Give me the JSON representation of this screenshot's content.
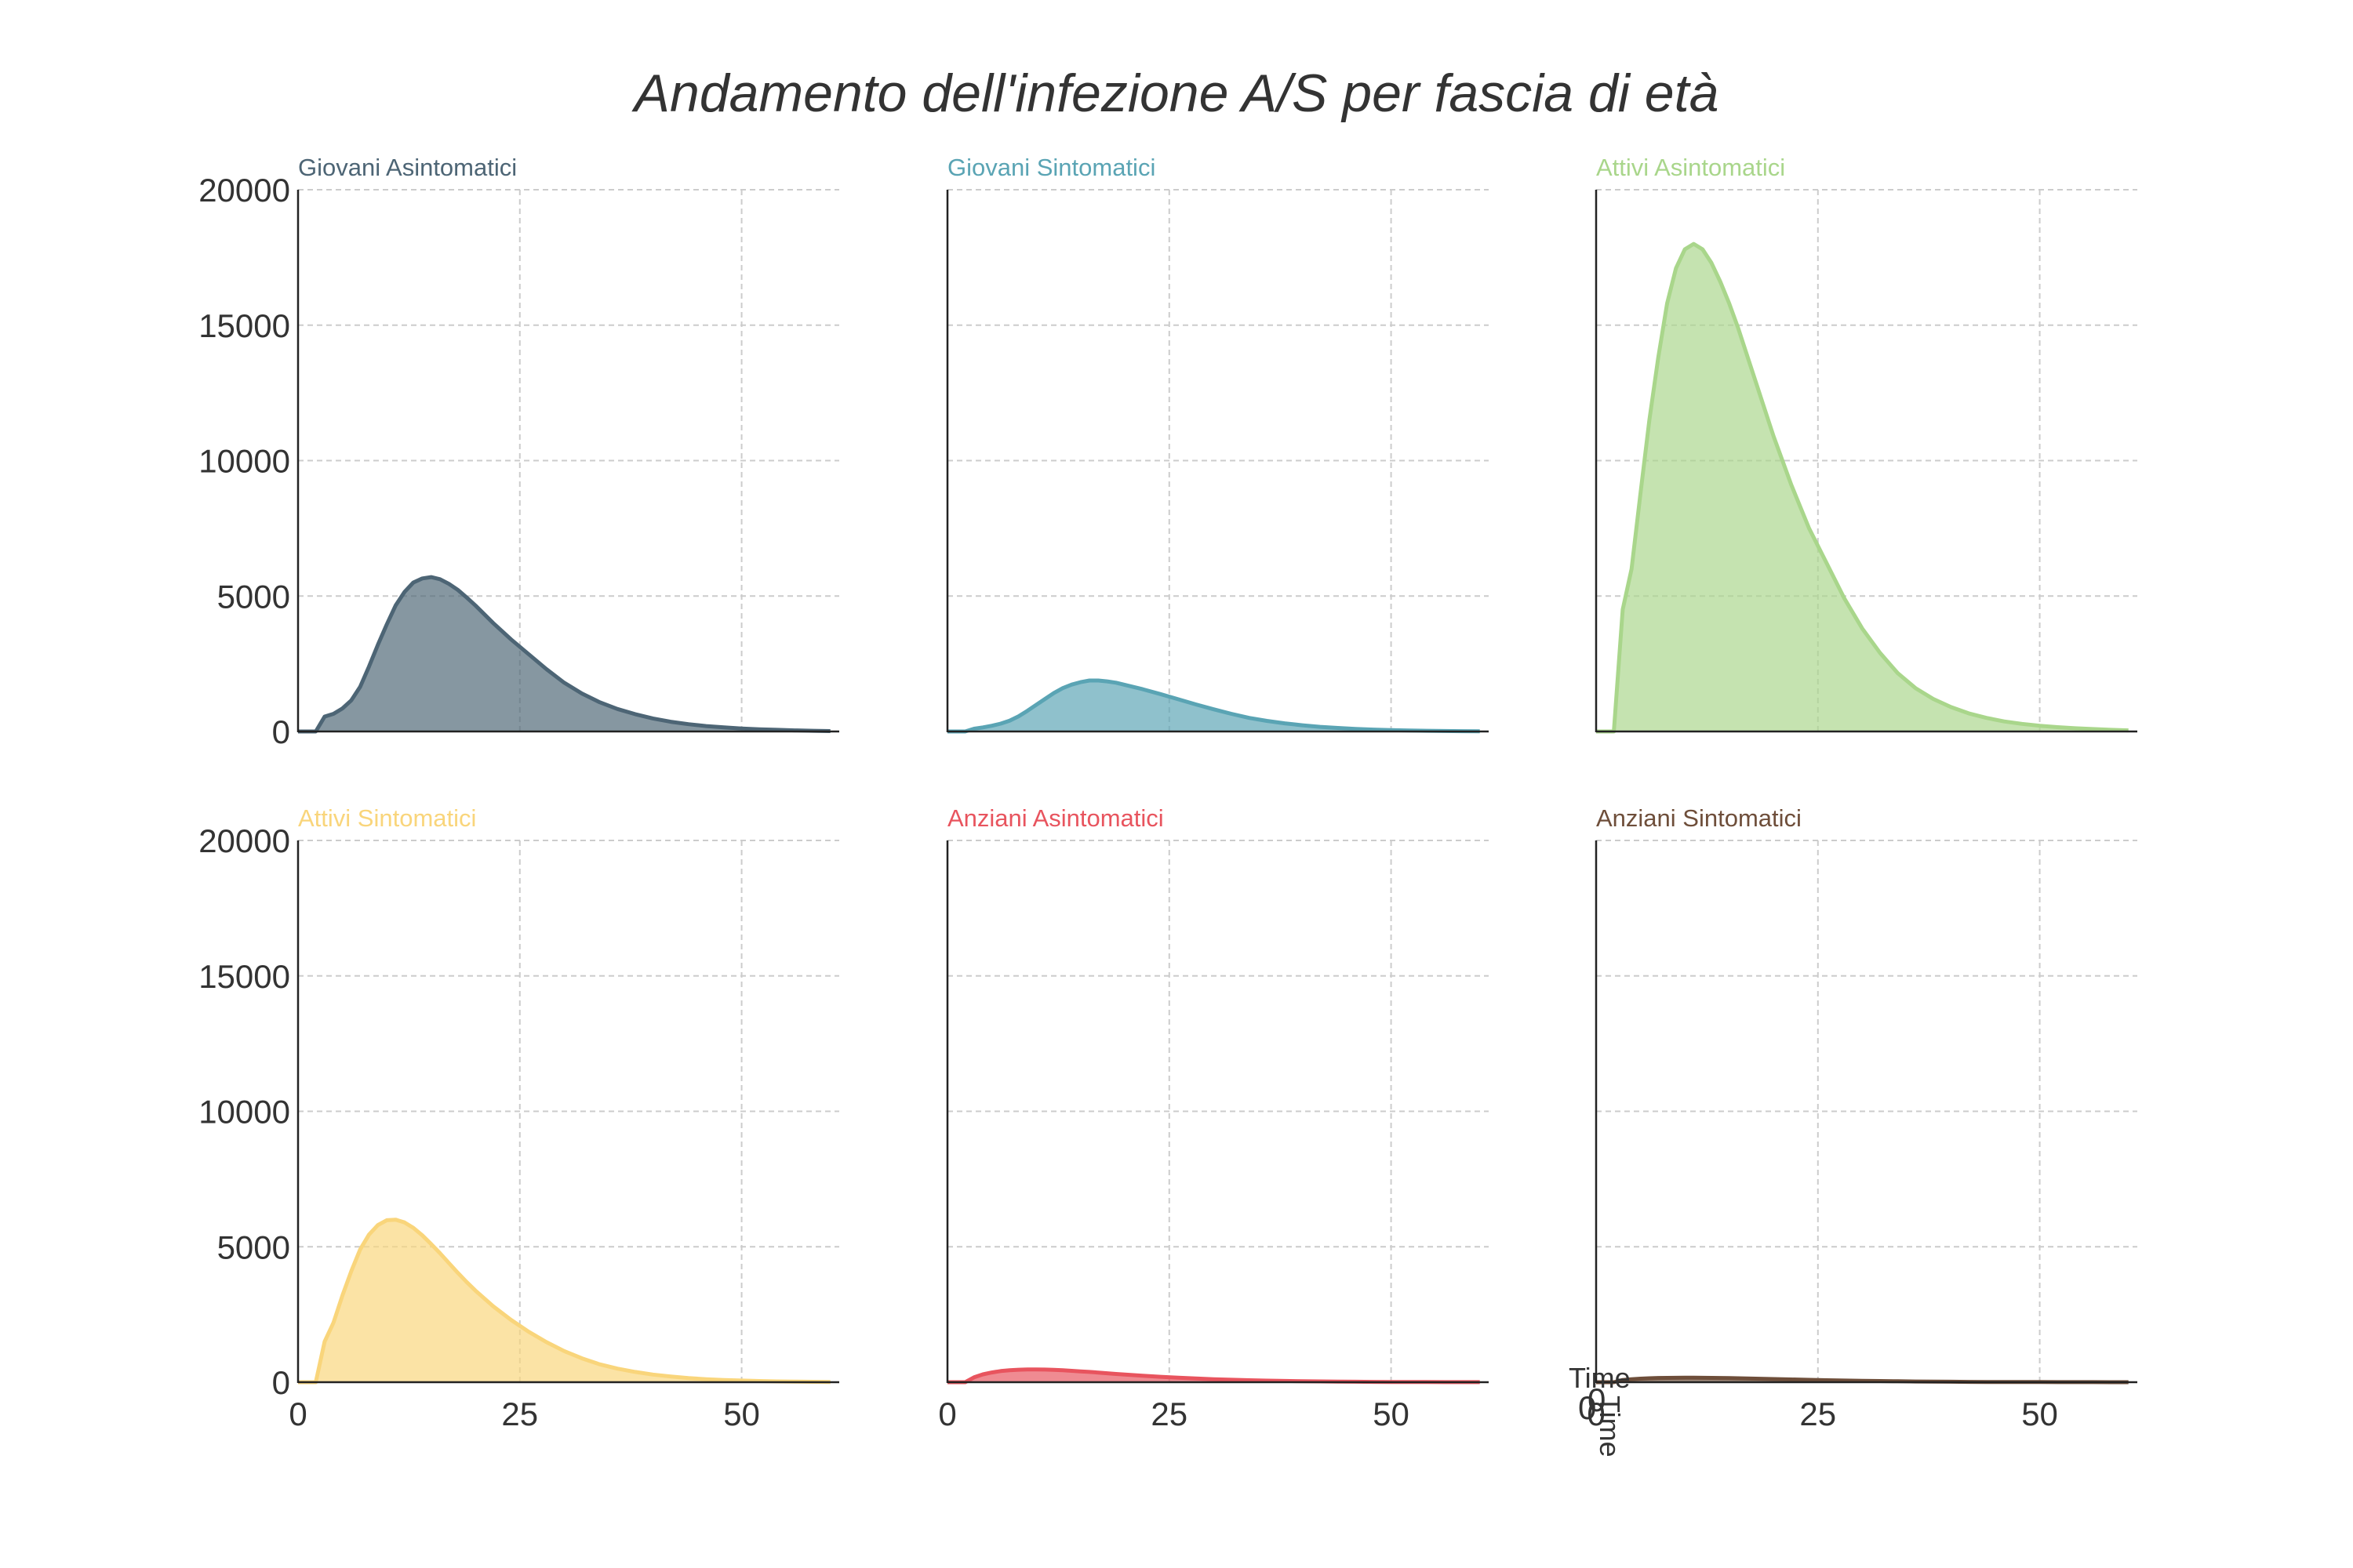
{
  "chart_data": {
    "type": "area",
    "title": "Andamento dell'infezione A/S per fascia di età",
    "x": [
      0,
      2,
      3,
      4,
      5,
      6,
      7,
      8,
      9,
      10,
      11,
      12,
      13,
      14,
      15,
      16,
      17,
      18,
      19,
      20,
      22,
      24,
      26,
      28,
      30,
      32,
      34,
      36,
      38,
      40,
      42,
      44,
      46,
      48,
      50,
      52,
      54,
      56,
      58,
      60
    ],
    "xlim": [
      0,
      61
    ],
    "ylim": [
      0,
      20000
    ],
    "x_ticks": [
      "0",
      "25",
      "50"
    ],
    "y_ticks": [
      "0",
      "5000",
      "10000",
      "15000",
      "20000"
    ],
    "grid": true,
    "series": [
      {
        "name": "Giovani Asintomatici",
        "color": "#4d6575",
        "values": [
          0,
          0,
          550,
          650,
          850,
          1150,
          1650,
          2400,
          3200,
          3950,
          4650,
          5150,
          5500,
          5650,
          5700,
          5620,
          5450,
          5230,
          4950,
          4650,
          4000,
          3400,
          2850,
          2300,
          1800,
          1400,
          1080,
          830,
          640,
          480,
          360,
          270,
          200,
          150,
          110,
          80,
          60,
          40,
          25,
          15
        ]
      },
      {
        "name": "Giovani Sintomatici",
        "color": "#5aa4b4",
        "values": [
          0,
          0,
          100,
          150,
          210,
          290,
          400,
          560,
          760,
          980,
          1200,
          1420,
          1600,
          1730,
          1820,
          1880,
          1880,
          1850,
          1800,
          1720,
          1560,
          1380,
          1190,
          1000,
          820,
          650,
          500,
          390,
          300,
          230,
          170,
          130,
          95,
          70,
          50,
          35,
          25,
          18,
          12,
          8
        ]
      },
      {
        "name": "Attivi Asintomatici",
        "color": "#a9d68b",
        "values": [
          0,
          0,
          4500,
          6000,
          8800,
          11500,
          13800,
          15800,
          17100,
          17800,
          18000,
          17800,
          17300,
          16600,
          15800,
          14900,
          13900,
          12900,
          11900,
          10900,
          9100,
          7500,
          6200,
          4900,
          3800,
          2900,
          2150,
          1600,
          1200,
          900,
          670,
          500,
          370,
          280,
          210,
          160,
          120,
          90,
          60,
          40
        ]
      },
      {
        "name": "Attivi Sintomatici",
        "color": "#f9d57b",
        "values": [
          0,
          0,
          1500,
          2200,
          3200,
          4100,
          4900,
          5450,
          5800,
          5980,
          6000,
          5900,
          5700,
          5420,
          5100,
          4760,
          4400,
          4040,
          3700,
          3380,
          2800,
          2300,
          1860,
          1480,
          1150,
          880,
          660,
          500,
          380,
          280,
          210,
          150,
          110,
          80,
          60,
          42,
          30,
          22,
          15,
          10
        ]
      },
      {
        "name": "Anziani Asintomatici",
        "color": "#e8545e",
        "values": [
          0,
          0,
          180,
          290,
          360,
          410,
          440,
          460,
          470,
          470,
          465,
          455,
          440,
          420,
          400,
          380,
          355,
          330,
          305,
          280,
          240,
          200,
          165,
          135,
          110,
          90,
          72,
          58,
          46,
          36,
          28,
          22,
          17,
          13,
          10,
          8,
          6,
          4,
          3,
          2
        ]
      },
      {
        "name": "Anziani Sintomatici",
        "color": "#6e4e3a",
        "values": [
          0,
          0,
          80,
          110,
          130,
          145,
          155,
          160,
          163,
          165,
          165,
          163,
          160,
          155,
          150,
          144,
          137,
          130,
          122,
          115,
          100,
          86,
          73,
          61,
          51,
          42,
          34,
          27,
          22,
          17,
          13,
          10,
          8,
          6,
          5,
          4,
          3,
          2,
          1,
          1
        ]
      }
    ]
  },
  "corner_labels": {
    "x_label": "Time",
    "y_label": "Time",
    "tick_a": "0",
    "tick_b": "0"
  }
}
